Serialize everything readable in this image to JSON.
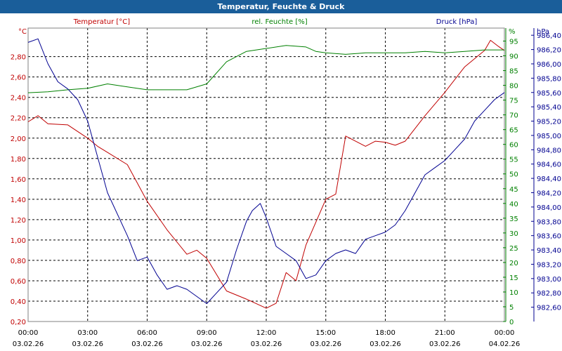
{
  "window": {
    "title": "Temperatur, Feuchte & Druck"
  },
  "chart_data": {
    "type": "line",
    "title": "Temperatur, Feuchte & Druck",
    "grid": true,
    "colors": {
      "temperature": "#c00000",
      "humidity": "#008000",
      "pressure": "#000090",
      "grid": "#000000",
      "plot_border": "#808080"
    },
    "x_range": [
      0,
      24
    ],
    "x_ticks": [
      {
        "h": 0,
        "time": "00:00",
        "date": "03.02.26"
      },
      {
        "h": 3,
        "time": "03:00",
        "date": "03.02.26"
      },
      {
        "h": 6,
        "time": "06:00",
        "date": "03.02.26"
      },
      {
        "h": 9,
        "time": "09:00",
        "date": "03.02.26"
      },
      {
        "h": 12,
        "time": "12:00",
        "date": "03.02.26"
      },
      {
        "h": 15,
        "time": "15:00",
        "date": "03.02.26"
      },
      {
        "h": 18,
        "time": "18:00",
        "date": "03.02.26"
      },
      {
        "h": 21,
        "time": "21:00",
        "date": "03.02.26"
      },
      {
        "h": 24,
        "time": "00:00",
        "date": "04.02.26"
      }
    ],
    "axes": {
      "temperature": {
        "title": "Temperatur [°C]",
        "unit": "°C",
        "range": [
          0.2,
          3.08
        ],
        "ticks": [
          "0,20",
          "0,40",
          "0,60",
          "0,80",
          "1,00",
          "1,20",
          "1,40",
          "1,60",
          "1,80",
          "2,00",
          "2,20",
          "2,40",
          "2,60",
          "2,80"
        ]
      },
      "humidity": {
        "title": "rel. Feuchte [%]",
        "unit": "%",
        "range": [
          0,
          99.4
        ],
        "ticks": [
          "0",
          "5",
          "10",
          "15",
          "20",
          "25",
          "30",
          "35",
          "40",
          "45",
          "50",
          "55",
          "60",
          "65",
          "70",
          "75",
          "80",
          "85",
          "90",
          "95"
        ]
      },
      "pressure": {
        "title": "Druck [hPa]",
        "unit": "hPa",
        "range": [
          982.4,
          986.5
        ],
        "ticks": [
          "982,60",
          "982,80",
          "983,00",
          "983,20",
          "983,40",
          "983,60",
          "983,80",
          "984,00",
          "984,20",
          "984,40",
          "984,60",
          "984,80",
          "985,00",
          "985,20",
          "985,40",
          "985,60",
          "985,80",
          "986,00",
          "986,20",
          "986,40"
        ]
      }
    },
    "series": [
      {
        "name": "Temperatur",
        "axis": "temperature",
        "x": [
          0,
          0.5,
          1,
          2,
          3,
          3.5,
          4,
          5,
          6,
          7,
          8,
          8.5,
          9,
          10,
          11,
          12,
          12.5,
          13,
          13.5,
          14,
          15,
          15.5,
          16,
          17,
          17.5,
          18,
          18.5,
          19,
          20,
          21,
          22,
          23,
          23.3,
          23.7,
          24
        ],
        "values": [
          2.16,
          2.22,
          2.14,
          2.13,
          2.0,
          1.92,
          1.86,
          1.74,
          1.38,
          1.1,
          0.86,
          0.9,
          0.82,
          0.5,
          0.42,
          0.33,
          0.38,
          0.68,
          0.6,
          0.95,
          1.4,
          1.45,
          2.02,
          1.92,
          1.97,
          1.96,
          1.93,
          1.97,
          2.22,
          2.45,
          2.7,
          2.86,
          2.96,
          2.9,
          2.86
        ]
      },
      {
        "name": "rel. Feuchte",
        "axis": "humidity",
        "x": [
          0,
          1,
          2,
          3,
          4,
          5,
          6,
          7,
          8,
          9,
          10,
          11,
          12,
          13,
          14,
          14.5,
          15,
          16,
          17,
          18,
          19,
          20,
          21,
          22,
          23,
          24
        ],
        "values": [
          77.5,
          77.8,
          78.5,
          79,
          80.5,
          79.5,
          78.5,
          78.5,
          78.5,
          80.5,
          88,
          91.5,
          92.5,
          93.5,
          93,
          91.5,
          91,
          90.5,
          91,
          91,
          91,
          91.5,
          91,
          91.5,
          92,
          92
        ]
      },
      {
        "name": "Druck",
        "axis": "pressure",
        "x": [
          0,
          0.5,
          1,
          1.5,
          2,
          2.5,
          3,
          3.5,
          4,
          5,
          5.5,
          6,
          6.5,
          7,
          7.5,
          8,
          9,
          9.5,
          10,
          10.5,
          11,
          11.3,
          11.7,
          12,
          12.5,
          13,
          13.5,
          14,
          14.5,
          15,
          15.5,
          16,
          16.5,
          17,
          17.5,
          18,
          18.5,
          19,
          19.5,
          20,
          20.5,
          21,
          21.5,
          22,
          22.5,
          23,
          23.5,
          24
        ],
        "values": [
          986.3,
          986.35,
          986.0,
          985.75,
          985.65,
          985.5,
          985.2,
          984.7,
          984.2,
          983.6,
          983.25,
          983.3,
          983.05,
          982.85,
          982.9,
          982.85,
          982.65,
          982.8,
          982.95,
          983.4,
          983.8,
          983.95,
          984.05,
          983.85,
          983.45,
          983.35,
          983.25,
          983.0,
          983.05,
          983.25,
          983.35,
          983.4,
          983.35,
          983.55,
          983.6,
          983.65,
          983.75,
          983.95,
          984.2,
          984.45,
          984.55,
          984.65,
          984.8,
          984.95,
          985.2,
          985.35,
          985.5,
          985.6
        ]
      }
    ]
  }
}
